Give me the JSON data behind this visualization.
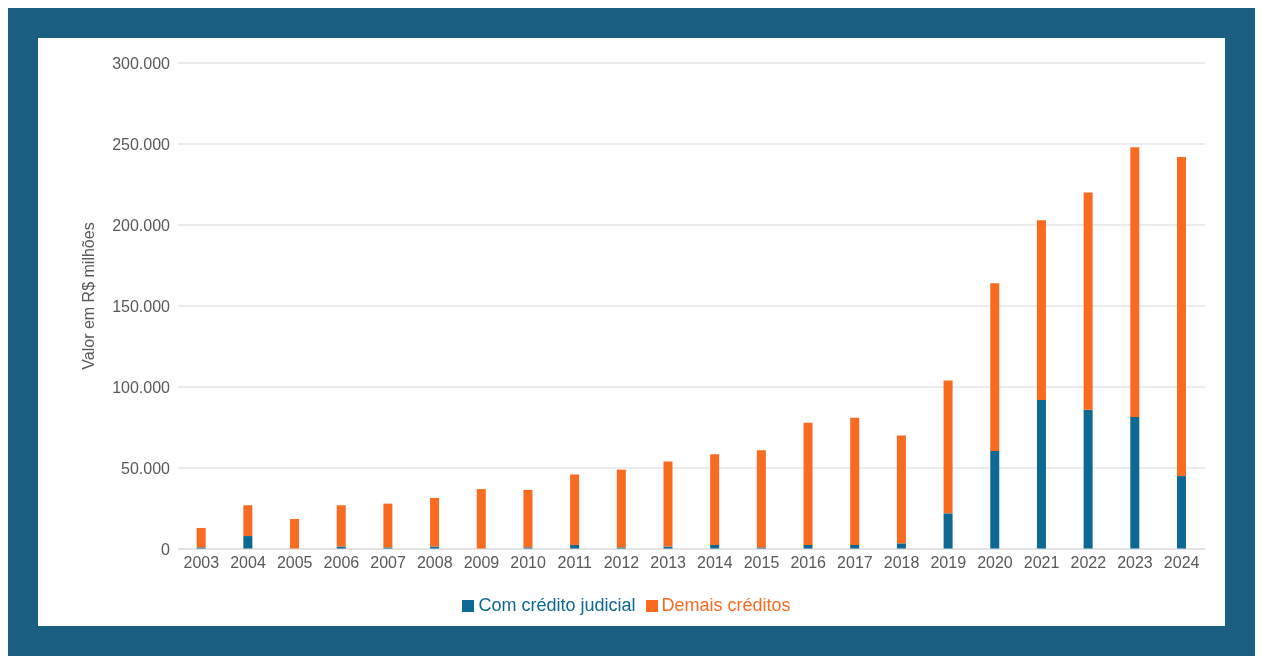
{
  "chart_data": {
    "type": "bar",
    "stacked": true,
    "ylabel": "Valor em R$ milhões",
    "categories": [
      "2003",
      "2004",
      "2005",
      "2006",
      "2007",
      "2008",
      "2009",
      "2010",
      "2011",
      "2012",
      "2013",
      "2014",
      "2015",
      "2016",
      "2017",
      "2018",
      "2019",
      "2020",
      "2021",
      "2022",
      "2023",
      "2024"
    ],
    "series": [
      {
        "name": "Com crédito judicial",
        "color": "#0e6894",
        "values": [
          1000,
          8000,
          0,
          1500,
          1000,
          1500,
          0,
          1000,
          2500,
          1000,
          1500,
          2500,
          1000,
          2500,
          2500,
          3500,
          22000,
          60500,
          92000,
          86000,
          81500,
          45000
        ]
      },
      {
        "name": "Demais créditos",
        "color": "#f96b20",
        "values": [
          12000,
          19000,
          18500,
          25500,
          27000,
          30000,
          37000,
          35500,
          43500,
          48000,
          52500,
          56000,
          60000,
          75500,
          78500,
          66500,
          82000,
          103500,
          111000,
          134000,
          166500,
          197000
        ]
      }
    ],
    "ylim": [
      0,
      300000
    ],
    "yticks": [
      {
        "value": 0,
        "label": "0"
      },
      {
        "value": 50000,
        "label": "50.000"
      },
      {
        "value": 100000,
        "label": "100.000"
      },
      {
        "value": 150000,
        "label": "150.000"
      },
      {
        "value": 200000,
        "label": "200.000"
      },
      {
        "value": 250000,
        "label": "250.000"
      },
      {
        "value": 300000,
        "label": "300.000"
      }
    ],
    "grid": "y",
    "legend": "bottom"
  }
}
